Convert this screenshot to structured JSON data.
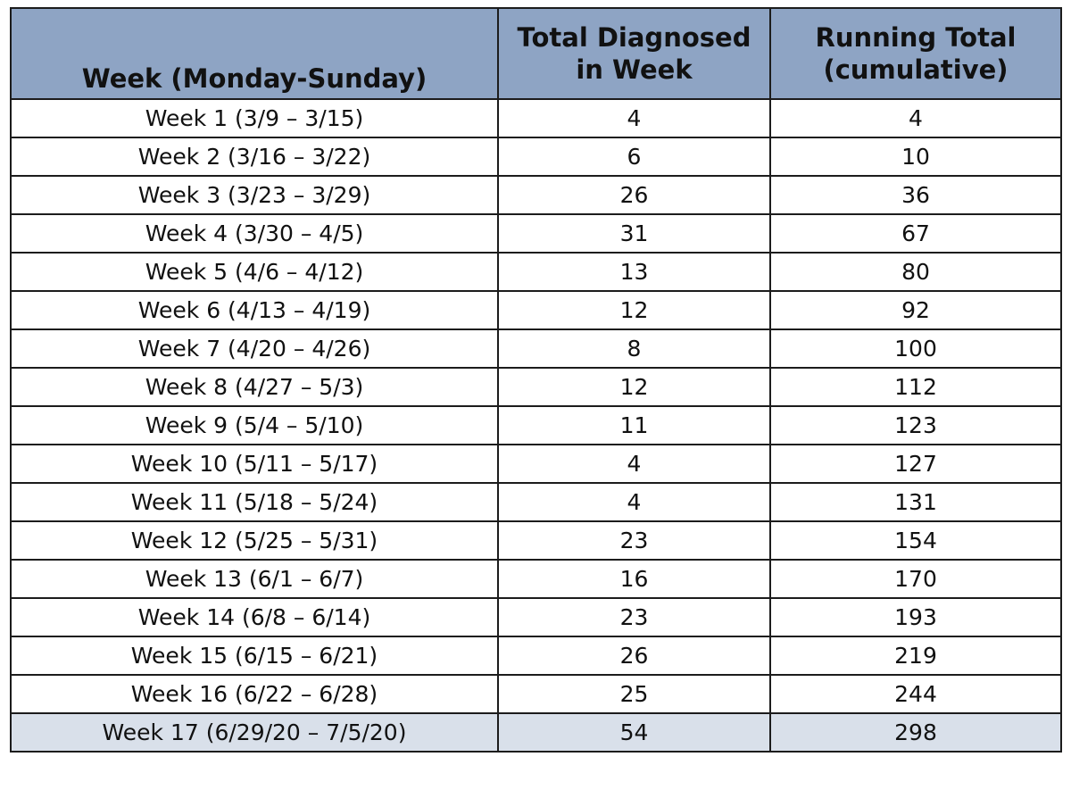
{
  "table": {
    "headers": {
      "week": "Week (Monday-Sunday)",
      "total_line1": "Total Diagnosed",
      "total_line2": "in Week",
      "running_line1": "Running Total",
      "running_line2": "(cumulative)"
    },
    "rows": [
      {
        "week": "Week 1 (3/9 – 3/15)",
        "total": "4",
        "running": "4"
      },
      {
        "week": "Week 2 (3/16 – 3/22)",
        "total": "6",
        "running": "10"
      },
      {
        "week": "Week 3 (3/23 – 3/29)",
        "total": "26",
        "running": "36"
      },
      {
        "week": "Week 4 (3/30 – 4/5)",
        "total": "31",
        "running": "67"
      },
      {
        "week": "Week 5 (4/6 – 4/12)",
        "total": "13",
        "running": "80"
      },
      {
        "week": "Week 6 (4/13 – 4/19)",
        "total": "12",
        "running": "92"
      },
      {
        "week": "Week 7 (4/20 – 4/26)",
        "total": "8",
        "running": "100"
      },
      {
        "week": "Week 8 (4/27 – 5/3)",
        "total": "12",
        "running": "112"
      },
      {
        "week": "Week 9 (5/4 – 5/10)",
        "total": "11",
        "running": "123"
      },
      {
        "week": "Week 10 (5/11 – 5/17)",
        "total": "4",
        "running": "127"
      },
      {
        "week": "Week 11 (5/18 – 5/24)",
        "total": "4",
        "running": "131"
      },
      {
        "week": "Week 12 (5/25 – 5/31)",
        "total": "23",
        "running": "154"
      },
      {
        "week": "Week 13 (6/1 – 6/7)",
        "total": "16",
        "running": "170"
      },
      {
        "week": "Week 14 (6/8 – 6/14)",
        "total": "23",
        "running": "193"
      },
      {
        "week": "Week 15 (6/15 – 6/21)",
        "total": "26",
        "running": "219"
      },
      {
        "week": "Week 16 (6/22 – 6/28)",
        "total": "25",
        "running": "244"
      },
      {
        "week": "Week 17 (6/29/20 – 7/5/20)",
        "total": "54",
        "running": "298"
      }
    ],
    "colors": {
      "header_bg": "#8ea4c4",
      "highlight_row_bg": "#d9e0ea",
      "border": "#1c1c1c"
    }
  }
}
